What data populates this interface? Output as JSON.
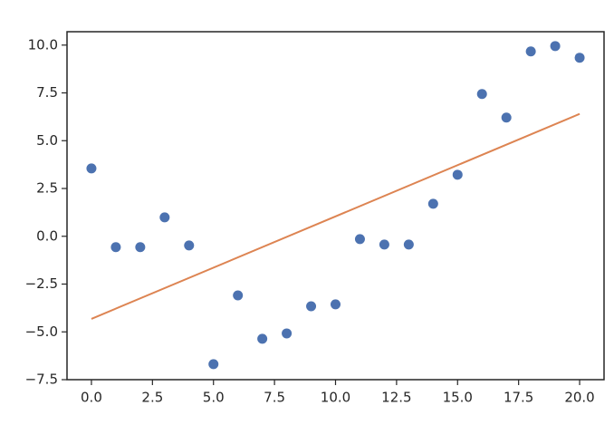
{
  "chart_data": {
    "type": "scatter",
    "xlim": [
      -1,
      21
    ],
    "ylim": [
      -7.5,
      10.7
    ],
    "xticks": [
      {
        "value": 0,
        "label": "0.0"
      },
      {
        "value": 2.5,
        "label": "2.5"
      },
      {
        "value": 5,
        "label": "5.0"
      },
      {
        "value": 7.5,
        "label": "7.5"
      },
      {
        "value": 10,
        "label": "10.0"
      },
      {
        "value": 12.5,
        "label": "12.5"
      },
      {
        "value": 15,
        "label": "15.0"
      },
      {
        "value": 17.5,
        "label": "17.5"
      },
      {
        "value": 20,
        "label": "20.0"
      }
    ],
    "yticks": [
      {
        "value": -7.5,
        "label": "−7.5"
      },
      {
        "value": -5,
        "label": "−5.0"
      },
      {
        "value": -2.5,
        "label": "−2.5"
      },
      {
        "value": 0,
        "label": "0.0"
      },
      {
        "value": 2.5,
        "label": "2.5"
      },
      {
        "value": 5,
        "label": "5.0"
      },
      {
        "value": 7.5,
        "label": "7.5"
      },
      {
        "value": 10,
        "label": "10.0"
      }
    ],
    "grid": false,
    "series": [
      {
        "color": "#4c72b0",
        "marker": "circle",
        "x": [
          0,
          1,
          2,
          3,
          4,
          5,
          6,
          7,
          8,
          9,
          10,
          11,
          12,
          13,
          14,
          15,
          16,
          17,
          18,
          19,
          20
        ],
        "values": [
          3.55,
          -0.57,
          -0.57,
          0.99,
          -0.48,
          -6.69,
          -3.09,
          -5.36,
          -5.08,
          -3.66,
          -3.56,
          -0.15,
          -0.43,
          -0.43,
          1.7,
          3.22,
          7.44,
          6.21,
          9.67,
          9.95,
          9.34
        ]
      },
      {
        "color": "#dd8452",
        "line": true,
        "x": [
          0,
          20
        ],
        "values": [
          -4.32,
          6.4
        ]
      }
    ]
  }
}
